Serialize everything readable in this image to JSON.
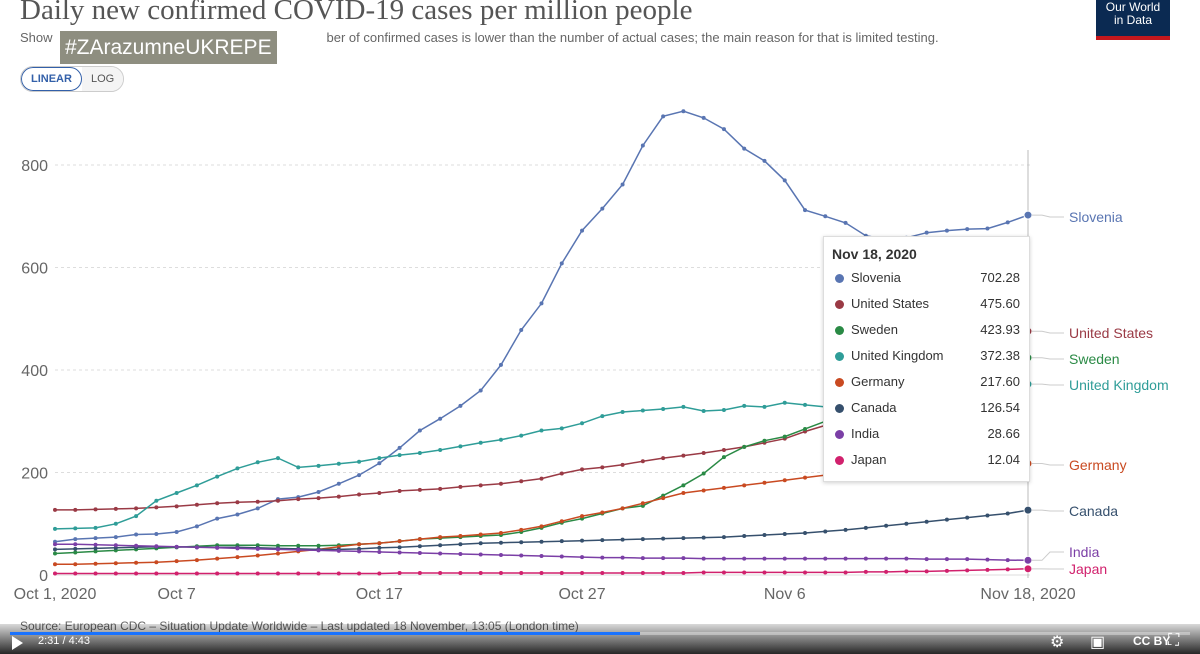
{
  "header": {
    "title": "Daily new confirmed COVID-19 cases per million people",
    "subtitle_start": "Show",
    "subtitle_end": "ber of confirmed cases is lower than the number of actual cases; the main reason for that is limited testing.",
    "hashtag": "#ZArazumneUKREPE",
    "logo_line1": "Our World",
    "logo_line2": "in Data"
  },
  "controls": {
    "linear_label": "LINEAR",
    "log_label": "LOG",
    "active": "LINEAR"
  },
  "chart_data": {
    "type": "line",
    "title": "Daily new confirmed COVID-19 cases per million people",
    "xlabel": "",
    "ylabel": "",
    "x_ticks": [
      "Oct 1, 2020",
      "Oct 7",
      "Oct 17",
      "Oct 27",
      "Nov 6",
      "Nov 18, 2020"
    ],
    "x_tick_days": [
      0,
      6,
      16,
      26,
      36,
      48
    ],
    "y_ticks": [
      0,
      200,
      400,
      600,
      800
    ],
    "ylim": [
      0,
      900
    ],
    "grid": "horizontal",
    "legend": "right-end labels",
    "series": [
      {
        "name": "Slovenia",
        "color": "#5975b2",
        "values": [
          65,
          70,
          72,
          74,
          79,
          80,
          84,
          95,
          110,
          118,
          130,
          148,
          152,
          162,
          178,
          195,
          218,
          248,
          282,
          305,
          330,
          360,
          410,
          478,
          530,
          608,
          672,
          715,
          762,
          838,
          895,
          905,
          892,
          870,
          832,
          808,
          770,
          712,
          700,
          687,
          662,
          655,
          658,
          668,
          672,
          675,
          676,
          688,
          702.28
        ]
      },
      {
        "name": "United States",
        "color": "#9a3a45",
        "values": [
          127,
          127,
          128,
          129,
          130,
          132,
          134,
          137,
          140,
          142,
          143,
          145,
          148,
          150,
          153,
          157,
          160,
          164,
          166,
          168,
          172,
          175,
          178,
          183,
          188,
          198,
          206,
          210,
          215,
          222,
          228,
          233,
          238,
          244,
          250,
          258,
          266,
          280,
          292,
          305,
          320,
          338,
          355,
          370,
          390,
          410,
          432,
          455,
          475.6
        ]
      },
      {
        "name": "Sweden",
        "color": "#2a8a45",
        "values": [
          42,
          44,
          46,
          48,
          50,
          52,
          54,
          56,
          58,
          58,
          58,
          57,
          57,
          57,
          58,
          60,
          62,
          66,
          70,
          72,
          74,
          76,
          78,
          84,
          92,
          102,
          110,
          120,
          130,
          135,
          155,
          175,
          198,
          230,
          250,
          262,
          270,
          285,
          300,
          318,
          330,
          345,
          360,
          372,
          385,
          395,
          405,
          415,
          423.93
        ]
      },
      {
        "name": "United Kingdom",
        "color": "#2f9d98",
        "values": [
          90,
          91,
          92,
          100,
          115,
          145,
          160,
          175,
          192,
          208,
          220,
          228,
          210,
          213,
          217,
          221,
          228,
          234,
          238,
          244,
          251,
          258,
          264,
          272,
          282,
          286,
          296,
          310,
          318,
          321,
          324,
          328,
          320,
          322,
          330,
          328,
          336,
          332,
          328,
          327,
          330,
          332,
          335,
          340,
          345,
          350,
          355,
          362,
          372.38
        ]
      },
      {
        "name": "Germany",
        "color": "#c94a21",
        "values": [
          21,
          21,
          22,
          23,
          24,
          25,
          27,
          29,
          32,
          35,
          38,
          42,
          46,
          50,
          55,
          60,
          62,
          66,
          70,
          74,
          76,
          79,
          82,
          88,
          95,
          105,
          115,
          122,
          130,
          140,
          150,
          160,
          165,
          170,
          175,
          180,
          185,
          190,
          195,
          200,
          203,
          206,
          208,
          210,
          212,
          213,
          214,
          216,
          217.6
        ]
      },
      {
        "name": "Canada",
        "color": "#36506d",
        "values": [
          50,
          51,
          52,
          53,
          54,
          55,
          55,
          54,
          54,
          54,
          53,
          52,
          51,
          50,
          50,
          51,
          53,
          54,
          56,
          58,
          60,
          62,
          63,
          64,
          65,
          66,
          67,
          68,
          69,
          70,
          71,
          72,
          73,
          74,
          76,
          78,
          80,
          82,
          85,
          88,
          92,
          96,
          100,
          104,
          108,
          112,
          116,
          120,
          126.54
        ]
      },
      {
        "name": "India",
        "color": "#7b3fa6",
        "values": [
          60,
          60,
          59,
          58,
          57,
          56,
          55,
          54,
          53,
          52,
          51,
          50,
          49,
          48,
          47,
          46,
          45,
          44,
          43,
          42,
          41,
          40,
          39,
          38,
          37,
          36,
          35,
          34,
          34,
          33,
          33,
          33,
          32,
          32,
          32,
          32,
          32,
          32,
          32,
          32,
          32,
          32,
          32,
          31,
          31,
          31,
          30,
          29,
          28.66
        ]
      },
      {
        "name": "Japan",
        "color": "#d1216d",
        "values": [
          3,
          3,
          3,
          3,
          3,
          3,
          3,
          3,
          3,
          3,
          3,
          3,
          3,
          3,
          3,
          3,
          3,
          4,
          4,
          4,
          4,
          4,
          4,
          4,
          4,
          4,
          4,
          4,
          4,
          4,
          4,
          4,
          5,
          5,
          5,
          5,
          5,
          5,
          5,
          5,
          6,
          6,
          7,
          7,
          8,
          9,
          10,
          11,
          12.04
        ]
      }
    ]
  },
  "tooltip": {
    "date": "Nov 18, 2020",
    "rows": [
      {
        "name": "Slovenia",
        "value": "702.28",
        "color": "#5975b2"
      },
      {
        "name": "United States",
        "value": "475.60",
        "color": "#9a3a45"
      },
      {
        "name": "Sweden",
        "value": "423.93",
        "color": "#2a8a45"
      },
      {
        "name": "United Kingdom",
        "value": "372.38",
        "color": "#2f9d98"
      },
      {
        "name": "Germany",
        "value": "217.60",
        "color": "#c94a21"
      },
      {
        "name": "Canada",
        "value": "126.54",
        "color": "#36506d"
      },
      {
        "name": "India",
        "value": "28.66",
        "color": "#7b3fa6"
      },
      {
        "name": "Japan",
        "value": "12.04",
        "color": "#d1216d"
      }
    ]
  },
  "source": "Source: European CDC – Situation Update Worldwide – Last updated 18 November, 13:05 (London time)",
  "player": {
    "time": "2:31 / 4:43",
    "progress": 0.534,
    "cc_label": "CC BY"
  }
}
